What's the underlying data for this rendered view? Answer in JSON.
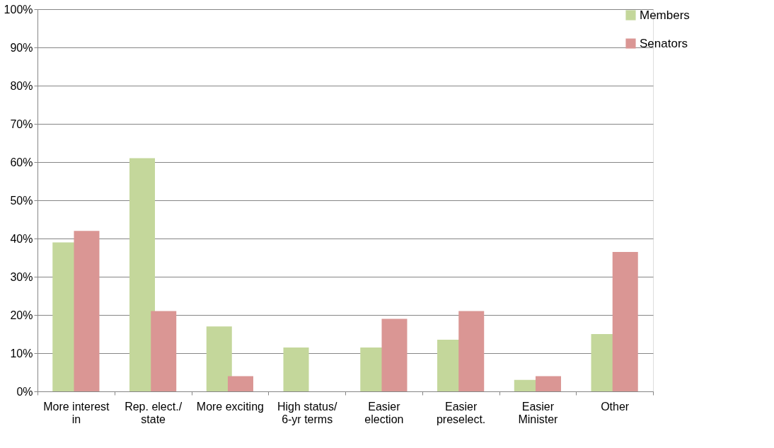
{
  "chart_data": {
    "type": "bar",
    "categories": [
      "More interest\nin",
      "Rep. elect./\nstate",
      "More exciting",
      "High status/\n6-yr terms",
      "Easier\nelection",
      "Easier\npreselect.",
      "Easier\nMinister",
      "Other"
    ],
    "series": [
      {
        "name": "Members",
        "color": "#c4d79b",
        "values": [
          39,
          61,
          17,
          11.5,
          11.5,
          13.5,
          3,
          15
        ]
      },
      {
        "name": "Senators",
        "color": "#da9694",
        "values": [
          42,
          21,
          4,
          null,
          19,
          21,
          4,
          36.5
        ]
      }
    ],
    "ylim": [
      0,
      100
    ],
    "yticks": [
      {
        "value": 0,
        "label": "0%"
      },
      {
        "value": 10,
        "label": "10%"
      },
      {
        "value": 20,
        "label": "20%"
      },
      {
        "value": 30,
        "label": "30%"
      },
      {
        "value": 40,
        "label": "40%"
      },
      {
        "value": 50,
        "label": "50%"
      },
      {
        "value": 60,
        "label": "60%"
      },
      {
        "value": 70,
        "label": "70%"
      },
      {
        "value": 80,
        "label": "80%"
      },
      {
        "value": 90,
        "label": "90%"
      },
      {
        "value": 100,
        "label": "100%"
      }
    ],
    "grid": "y",
    "legend": "right"
  }
}
